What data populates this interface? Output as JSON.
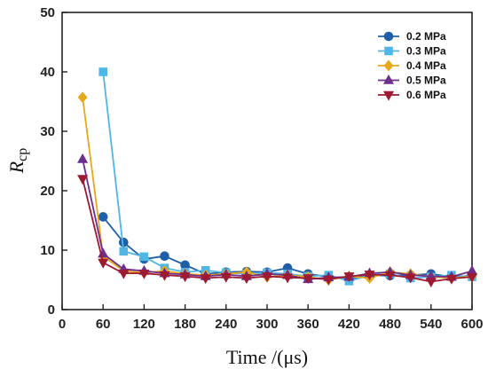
{
  "chart_data": {
    "type": "line",
    "title": "",
    "xlabel": "Time /(μs)",
    "ylabel_main": "R",
    "ylabel_sub": "cp",
    "xlim": [
      0,
      600
    ],
    "ylim": [
      0,
      50
    ],
    "xticks": [
      0,
      60,
      120,
      180,
      240,
      300,
      360,
      420,
      480,
      540,
      600
    ],
    "yticks": [
      0,
      10,
      20,
      30,
      40,
      50
    ],
    "grid": false,
    "legend_position": "top-right",
    "series": [
      {
        "name": "0.2 MPa",
        "color": "#1f5fa8",
        "marker": "circle",
        "x": [
          60,
          90,
          120,
          150,
          180,
          210,
          240,
          270,
          300,
          330,
          360,
          390,
          420,
          450,
          480,
          510,
          540,
          570,
          600
        ],
        "y": [
          15.6,
          11.3,
          8.5,
          9.0,
          7.5,
          6.0,
          6.3,
          6.4,
          6.3,
          7.0,
          6.0,
          5.5,
          5.2,
          5.8,
          5.7,
          5.8,
          6.0,
          5.5,
          5.7
        ]
      },
      {
        "name": "0.3 MPa",
        "color": "#4fb6e6",
        "marker": "square",
        "x": [
          60,
          90,
          120,
          150,
          180,
          210,
          240,
          270,
          300,
          330,
          360,
          390,
          420,
          450,
          480,
          510,
          540,
          570,
          600
        ],
        "y": [
          40.0,
          9.8,
          8.9,
          7.0,
          6.3,
          6.6,
          6.2,
          6.0,
          6.2,
          6.0,
          5.6,
          5.8,
          4.8,
          5.8,
          6.0,
          5.3,
          5.5,
          5.8,
          5.5
        ]
      },
      {
        "name": "0.4 MPa",
        "color": "#e7a91a",
        "marker": "diamond",
        "x": [
          30,
          60,
          90,
          120,
          150,
          180,
          210,
          240,
          270,
          300,
          330,
          360,
          390,
          420,
          450,
          480,
          510,
          540,
          570,
          600
        ],
        "y": [
          35.7,
          9.0,
          6.5,
          6.2,
          6.5,
          6.0,
          5.8,
          6.0,
          6.3,
          5.5,
          5.8,
          5.5,
          5.0,
          5.6,
          5.3,
          6.3,
          6.0,
          5.5,
          5.3,
          5.6
        ]
      },
      {
        "name": "0.5 MPa",
        "color": "#6d2f8e",
        "marker": "triangle-up",
        "x": [
          30,
          60,
          90,
          120,
          150,
          180,
          210,
          240,
          270,
          300,
          330,
          360,
          390,
          420,
          450,
          480,
          510,
          540,
          570,
          600
        ],
        "y": [
          25.3,
          9.4,
          6.8,
          6.5,
          6.1,
          5.9,
          5.6,
          5.9,
          5.6,
          6.0,
          5.8,
          5.1,
          5.4,
          5.5,
          6.1,
          6.3,
          5.8,
          5.6,
          5.5,
          6.5
        ]
      },
      {
        "name": "0.6 MPa",
        "color": "#9e1a32",
        "marker": "triangle-down",
        "x": [
          30,
          60,
          90,
          120,
          150,
          180,
          210,
          240,
          270,
          300,
          330,
          360,
          390,
          420,
          450,
          480,
          510,
          540,
          570,
          600
        ],
        "y": [
          22.0,
          7.9,
          6.1,
          6.1,
          5.8,
          5.6,
          5.3,
          5.5,
          5.3,
          5.6,
          5.4,
          5.3,
          5.1,
          5.6,
          5.9,
          5.8,
          5.4,
          4.7,
          5.2,
          5.5
        ]
      }
    ]
  }
}
